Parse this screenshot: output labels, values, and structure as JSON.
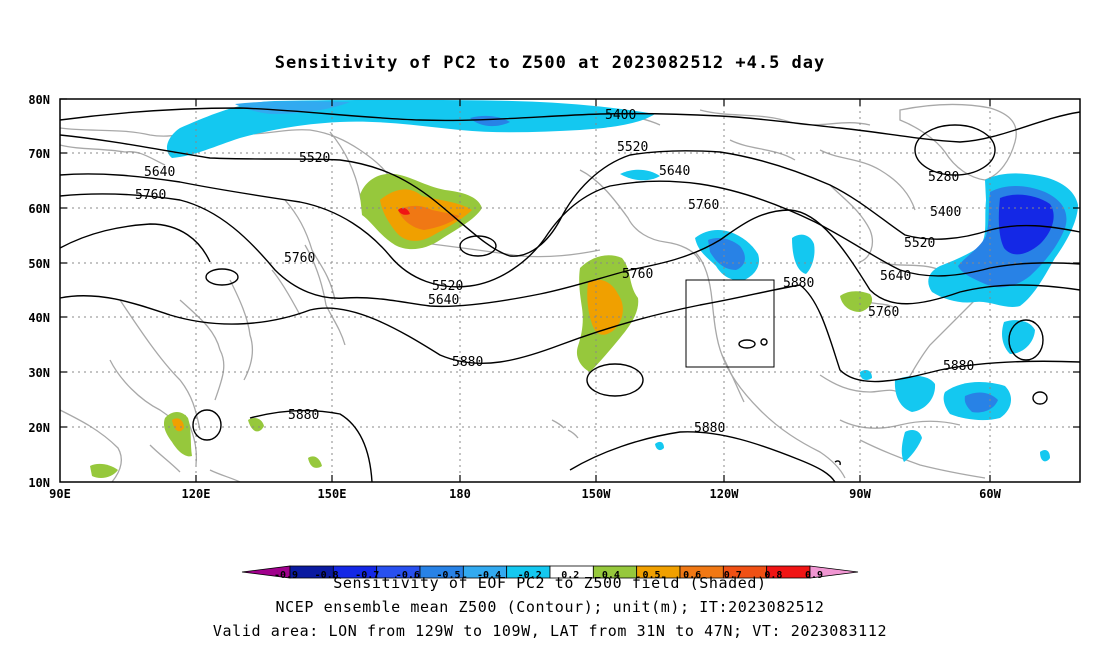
{
  "title": "Sensitivity of PC2 to Z500 at 2023082512 +4.5 day",
  "lat_labels": [
    "80N",
    "70N",
    "60N",
    "50N",
    "40N",
    "30N",
    "20N",
    "10N"
  ],
  "lon_labels": [
    "90E",
    "120E",
    "150E",
    "180",
    "150W",
    "120W",
    "90W",
    "60W"
  ],
  "contour_labels": [
    "5400",
    "5520",
    "5640",
    "5760",
    "5280",
    "5880"
  ],
  "colorbar": {
    "ticks": [
      "-0.9",
      "-0.8",
      "-0.7",
      "-0.6",
      "-0.5",
      "-0.4",
      "-0.2",
      "0.2",
      "0.4",
      "0.5",
      "0.6",
      "0.7",
      "0.8",
      "0.9"
    ],
    "colors": [
      "#a0008c",
      "#0a1aa0",
      "#1428e6",
      "#2850f0",
      "#2882e6",
      "#32aaf0",
      "#14c8f0",
      "#ffffff",
      "#96c83c",
      "#f0a000",
      "#f07814",
      "#f05014",
      "#f01414",
      "#f096d2"
    ]
  },
  "footer": {
    "line1": "Sensitivity of EOF PC2 to Z500 field (Shaded)",
    "line2": "NCEP ensemble mean Z500 (Contour); unit(m); IT:2023082512",
    "line3": "Valid area: LON from 129W to 109W, LAT from 31N to 47N; VT: 2023083112"
  }
}
